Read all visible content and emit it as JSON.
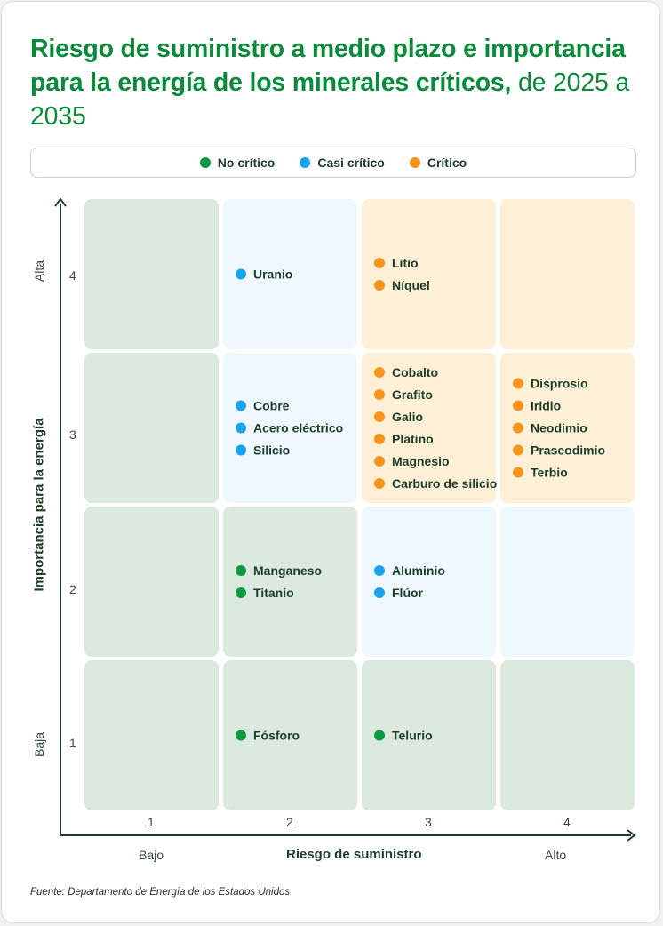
{
  "title": {
    "bold": "Riesgo de suministro a medio plazo e importancia para la energía de los minerales críticos,",
    "light": " de 2025 a 2035"
  },
  "legend": [
    {
      "label": "No crítico",
      "color": "#0b9a40"
    },
    {
      "label": "Casi crítico",
      "color": "#1aa3ec"
    },
    {
      "label": "Crítico",
      "color": "#f7941d"
    }
  ],
  "colors": {
    "no_critico_bg": "#dce9df",
    "casi_critico_bg": "#eef8fd",
    "critico_bg": "#fdf0d6",
    "axis": "#1d3d2a"
  },
  "chart_data": {
    "type": "table",
    "xlabel": "Riesgo de suministro",
    "ylabel": "Importancia para la energía",
    "x_ticks": [
      "1",
      "2",
      "3",
      "4"
    ],
    "y_ticks": [
      "1",
      "2",
      "3",
      "4"
    ],
    "x_ends": {
      "low": "Bajo",
      "high": "Alto"
    },
    "y_ends": {
      "low": "Baja",
      "high": "Alta"
    },
    "cells": [
      {
        "x": 1,
        "y": 4,
        "zone": "no_critico",
        "items": []
      },
      {
        "x": 2,
        "y": 4,
        "zone": "casi_critico",
        "items": [
          {
            "name": "Uranio",
            "class": "casi_critico"
          }
        ]
      },
      {
        "x": 3,
        "y": 4,
        "zone": "critico",
        "items": [
          {
            "name": "Litio",
            "class": "critico"
          },
          {
            "name": "Níquel",
            "class": "critico"
          }
        ]
      },
      {
        "x": 4,
        "y": 4,
        "zone": "critico",
        "items": []
      },
      {
        "x": 1,
        "y": 3,
        "zone": "no_critico",
        "items": []
      },
      {
        "x": 2,
        "y": 3,
        "zone": "casi_critico",
        "items": [
          {
            "name": "Cobre",
            "class": "casi_critico"
          },
          {
            "name": "Acero eléctrico",
            "class": "casi_critico"
          },
          {
            "name": "Silicio",
            "class": "casi_critico"
          }
        ]
      },
      {
        "x": 3,
        "y": 3,
        "zone": "critico",
        "items": [
          {
            "name": "Cobalto",
            "class": "critico"
          },
          {
            "name": "Grafito",
            "class": "critico"
          },
          {
            "name": "Galio",
            "class": "critico"
          },
          {
            "name": "Platino",
            "class": "critico"
          },
          {
            "name": "Magnesio",
            "class": "critico"
          },
          {
            "name": "Carburo de silicio",
            "class": "critico"
          }
        ]
      },
      {
        "x": 4,
        "y": 3,
        "zone": "critico",
        "items": [
          {
            "name": "Disprosio",
            "class": "critico"
          },
          {
            "name": "Iridio",
            "class": "critico"
          },
          {
            "name": "Neodimio",
            "class": "critico"
          },
          {
            "name": "Praseodimio",
            "class": "critico"
          },
          {
            "name": "Terbio",
            "class": "critico"
          }
        ]
      },
      {
        "x": 1,
        "y": 2,
        "zone": "no_critico",
        "items": []
      },
      {
        "x": 2,
        "y": 2,
        "zone": "no_critico",
        "items": [
          {
            "name": "Manganeso",
            "class": "no_critico"
          },
          {
            "name": "Titanio",
            "class": "no_critico"
          }
        ]
      },
      {
        "x": 3,
        "y": 2,
        "zone": "casi_critico",
        "items": [
          {
            "name": "Aluminio",
            "class": "casi_critico"
          },
          {
            "name": "Flúor",
            "class": "casi_critico"
          }
        ]
      },
      {
        "x": 4,
        "y": 2,
        "zone": "casi_critico",
        "items": []
      },
      {
        "x": 1,
        "y": 1,
        "zone": "no_critico",
        "items": []
      },
      {
        "x": 2,
        "y": 1,
        "zone": "no_critico",
        "items": [
          {
            "name": "Fósforo",
            "class": "no_critico"
          }
        ]
      },
      {
        "x": 3,
        "y": 1,
        "zone": "no_critico",
        "items": [
          {
            "name": "Telurio",
            "class": "no_critico"
          }
        ]
      },
      {
        "x": 4,
        "y": 1,
        "zone": "no_critico",
        "items": []
      }
    ]
  },
  "source": "Fuente: Departamento de Energía de los Estados Unidos"
}
